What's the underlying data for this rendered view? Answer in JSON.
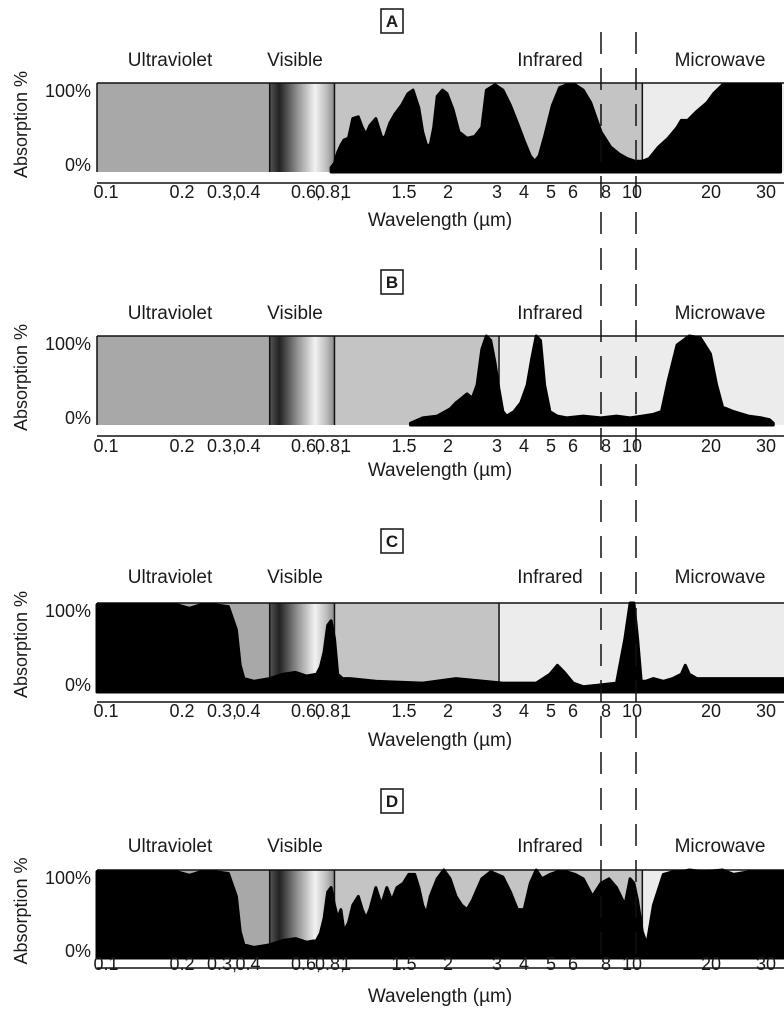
{
  "chart_data": [
    {
      "type": "area",
      "panel_label": "A",
      "xlabel": "Wavelength  (µm)",
      "ylabel": "Absorption %",
      "x_scale": "log",
      "xlim": [
        0.09,
        34
      ],
      "ylim": [
        0,
        100
      ],
      "y_tick_labels": [
        "100%",
        "0%"
      ],
      "x_tick_labels": [
        "0.1",
        "0.2",
        "0.3",
        "0.4",
        "0.6",
        "0.8",
        "1",
        "1.5",
        "2",
        "3",
        "4",
        "5",
        "6",
        "8",
        "10",
        "20",
        "30"
      ],
      "band_labels": [
        "Ultraviolet",
        "Visible",
        "Infrared",
        "Microwave"
      ],
      "absorption": {
        "x": [
          0.68,
          0.7,
          0.72,
          0.74,
          0.76,
          0.79,
          0.82,
          0.86,
          0.89,
          0.92,
          0.95,
          1.0,
          1.05,
          1.08,
          1.13,
          1.18,
          1.25,
          1.32,
          1.38,
          1.45,
          1.5,
          1.55,
          1.6,
          1.65,
          1.7,
          1.78,
          1.85,
          1.95,
          2.05,
          2.2,
          2.35,
          2.5,
          2.6,
          2.8,
          3.0,
          3.2,
          3.4,
          3.6,
          3.8,
          3.95,
          4.1,
          4.3,
          4.6,
          4.9,
          5.2,
          5.6,
          6.0,
          6.4,
          7.0,
          7.6,
          8.2,
          8.8,
          9.4,
          10.0,
          10.6,
          11.5,
          12.5,
          13.5,
          14.0,
          14.8,
          16,
          17.5,
          18.5,
          20,
          22,
          25,
          28,
          30,
          33
        ],
        "y": [
          5,
          10,
          22,
          30,
          36,
          38,
          60,
          62,
          50,
          42,
          52,
          60,
          40,
          38,
          55,
          65,
          75,
          88,
          92,
          72,
          45,
          30,
          30,
          50,
          85,
          92,
          88,
          70,
          45,
          38,
          40,
          50,
          92,
          98,
          92,
          75,
          55,
          35,
          18,
          12,
          18,
          40,
          75,
          95,
          98,
          98,
          92,
          78,
          45,
          28,
          20,
          15,
          12,
          12,
          15,
          28,
          38,
          50,
          58,
          58,
          68,
          78,
          88,
          98,
          98,
          98,
          98,
          98,
          98
        ]
      }
    },
    {
      "type": "area",
      "panel_label": "B",
      "xlabel": "Wavelength  (µm)",
      "ylabel": "Absorption %",
      "x_scale": "log",
      "xlim": [
        0.09,
        34
      ],
      "ylim": [
        0,
        100
      ],
      "y_tick_labels": [
        "100%",
        "0%"
      ],
      "x_tick_labels": [
        "0.1",
        "0.2",
        "0.3",
        "0.4",
        "0.6",
        "0.8",
        "1",
        "1.5",
        "2",
        "3",
        "4",
        "5",
        "6",
        "8",
        "10",
        "20",
        "30"
      ],
      "band_labels": [
        "Ultraviolet",
        "Visible",
        "Infrared",
        "Microwave"
      ],
      "absorption": {
        "x": [
          1.35,
          1.5,
          1.7,
          1.9,
          2.0,
          2.1,
          2.2,
          2.3,
          2.4,
          2.5,
          2.6,
          2.7,
          2.8,
          2.9,
          3.0,
          3.1,
          3.3,
          3.5,
          3.7,
          3.85,
          4.0,
          4.15,
          4.3,
          4.5,
          4.8,
          5.2,
          6.0,
          7.0,
          8.0,
          9.0,
          10.0,
          11.0,
          11.8,
          12.5,
          13.5,
          15.0,
          16.5,
          18.0,
          19.0,
          20.0,
          22,
          25,
          28,
          30,
          31
        ],
        "y": [
          2,
          8,
          10,
          18,
          25,
          30,
          35,
          30,
          45,
          85,
          100,
          95,
          70,
          40,
          15,
          10,
          15,
          25,
          45,
          75,
          100,
          95,
          45,
          15,
          10,
          8,
          10,
          8,
          10,
          8,
          10,
          12,
          15,
          50,
          90,
          100,
          98,
          80,
          45,
          20,
          15,
          10,
          8,
          6,
          2
        ]
      }
    },
    {
      "type": "area",
      "panel_label": "C",
      "xlabel": "Wavelength  (µm)",
      "ylabel": "Absorption %",
      "x_scale": "log",
      "xlim": [
        0.09,
        34
      ],
      "ylim": [
        0,
        100
      ],
      "y_tick_labels": [
        "100%",
        "0%"
      ],
      "x_tick_labels": [
        "0.1",
        "0.2",
        "0.3",
        "0.4",
        "0.6",
        "0.8",
        "1",
        "1.5",
        "2",
        "3",
        "4",
        "5",
        "6",
        "8",
        "10",
        "20",
        "30"
      ],
      "band_labels": [
        "Ultraviolet",
        "Visible",
        "Infrared",
        "Microwave"
      ],
      "absorption": {
        "x": [
          0.09,
          0.12,
          0.15,
          0.18,
          0.2,
          0.22,
          0.25,
          0.28,
          0.3,
          0.31,
          0.32,
          0.35,
          0.4,
          0.45,
          0.5,
          0.55,
          0.6,
          0.62,
          0.64,
          0.66,
          0.68,
          0.7,
          0.72,
          0.75,
          0.8,
          1.0,
          1.5,
          2.0,
          3.0,
          4.0,
          4.5,
          4.8,
          5.1,
          5.5,
          6.0,
          7.0,
          8.0,
          8.6,
          9.0,
          9.3,
          9.6,
          9.9,
          10.3,
          11,
          12,
          13,
          14,
          14.5,
          15,
          16,
          18,
          20,
          25,
          30,
          34
        ],
        "y": [
          98,
          98,
          98,
          98,
          94,
          98,
          98,
          96,
          70,
          30,
          15,
          12,
          15,
          20,
          22,
          18,
          20,
          28,
          45,
          75,
          80,
          60,
          20,
          15,
          15,
          12,
          10,
          15,
          10,
          10,
          20,
          30,
          22,
          10,
          6,
          8,
          10,
          60,
          100,
          100,
          60,
          12,
          12,
          15,
          12,
          15,
          20,
          30,
          20,
          15,
          15,
          15,
          15,
          15,
          15
        ]
      }
    },
    {
      "type": "area",
      "panel_label": "D",
      "xlabel": "Wavelength  (µm)",
      "ylabel": "Absorption %",
      "x_scale": "log",
      "xlim": [
        0.09,
        34
      ],
      "ylim": [
        0,
        100
      ],
      "y_tick_labels": [
        "100%",
        "0%"
      ],
      "x_tick_labels": [
        "0.1",
        "0.2",
        "0.3",
        "0.4",
        "0.6",
        "0.8",
        "1",
        "1.5",
        "2",
        "3",
        "4",
        "5",
        "6",
        "8",
        "10",
        "20",
        "30"
      ],
      "band_labels": [
        "Ultraviolet",
        "Visible",
        "Infrared",
        "Microwave"
      ],
      "absorption": {
        "x": [
          0.09,
          0.12,
          0.15,
          0.18,
          0.2,
          0.22,
          0.25,
          0.28,
          0.3,
          0.31,
          0.32,
          0.35,
          0.4,
          0.45,
          0.5,
          0.55,
          0.6,
          0.62,
          0.64,
          0.66,
          0.68,
          0.7,
          0.72,
          0.74,
          0.76,
          0.79,
          0.82,
          0.86,
          0.89,
          0.92,
          0.95,
          1.0,
          1.05,
          1.1,
          1.15,
          1.2,
          1.27,
          1.33,
          1.4,
          1.45,
          1.5,
          1.55,
          1.6,
          1.7,
          1.8,
          1.9,
          2.0,
          2.1,
          2.2,
          2.3,
          2.5,
          2.7,
          3.0,
          3.2,
          3.4,
          3.6,
          3.8,
          4.0,
          4.2,
          4.5,
          4.8,
          5.2,
          5.6,
          6.0,
          6.5,
          7.0,
          7.5,
          8.0,
          8.6,
          9.0,
          9.3,
          9.6,
          10.0,
          10.4,
          11.0,
          12.0,
          13.0,
          14.0,
          15.0,
          17.0,
          20.0,
          22,
          25,
          28,
          30,
          34
        ],
        "y": [
          98,
          98,
          98,
          98,
          94,
          98,
          98,
          96,
          70,
          30,
          15,
          12,
          15,
          20,
          22,
          18,
          20,
          28,
          45,
          75,
          80,
          60,
          45,
          55,
          30,
          40,
          60,
          70,
          55,
          45,
          55,
          80,
          60,
          80,
          65,
          80,
          85,
          95,
          95,
          80,
          60,
          50,
          70,
          90,
          100,
          90,
          70,
          60,
          55,
          65,
          90,
          98,
          92,
          75,
          55,
          55,
          85,
          100,
          90,
          95,
          98,
          98,
          95,
          90,
          70,
          85,
          90,
          80,
          60,
          90,
          85,
          65,
          30,
          15,
          60,
          95,
          98,
          98,
          100,
          98,
          100,
          95,
          98,
          98,
          98,
          98
        ]
      }
    }
  ]
}
